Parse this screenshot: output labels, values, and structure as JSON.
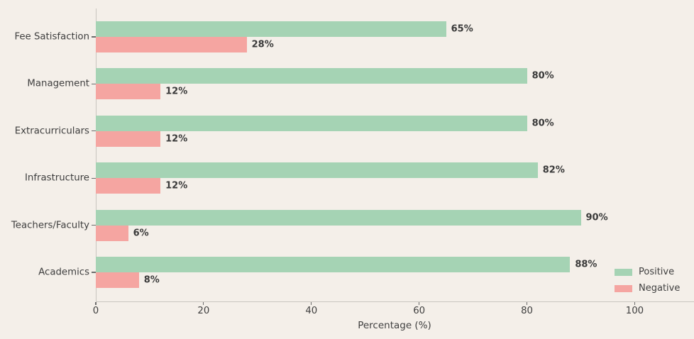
{
  "chart_data": {
    "type": "bar",
    "orientation": "horizontal",
    "title": "",
    "xlabel": "Percentage (%)",
    "ylabel": "",
    "categories": [
      "Fee Satisfaction",
      "Management",
      "Extracurriculars",
      "Infrastructure",
      "Teachers/Faculty",
      "Academics"
    ],
    "series": [
      {
        "name": "Positive",
        "color": "#a5d3b4",
        "values": [
          65,
          80,
          80,
          82,
          90,
          88
        ]
      },
      {
        "name": "Negative",
        "color": "#f5a5a1",
        "values": [
          28,
          12,
          12,
          12,
          6,
          8
        ]
      }
    ],
    "value_suffix": "%",
    "x_ticks": [
      "0",
      "20",
      "40",
      "60",
      "80",
      "100"
    ],
    "x_tick_values": [
      0,
      20,
      40,
      60,
      80,
      100
    ],
    "xlim": [
      0,
      111
    ],
    "grid": false,
    "legend": {
      "position": "lower right",
      "entries": [
        "Positive",
        "Negative"
      ]
    },
    "colors": {
      "background": "#f4efe9",
      "axis": "#c9c5bf",
      "tick": "#6b6b6b",
      "tick_text": "#3f3f3f",
      "value_label": "#3a3a3a"
    }
  }
}
